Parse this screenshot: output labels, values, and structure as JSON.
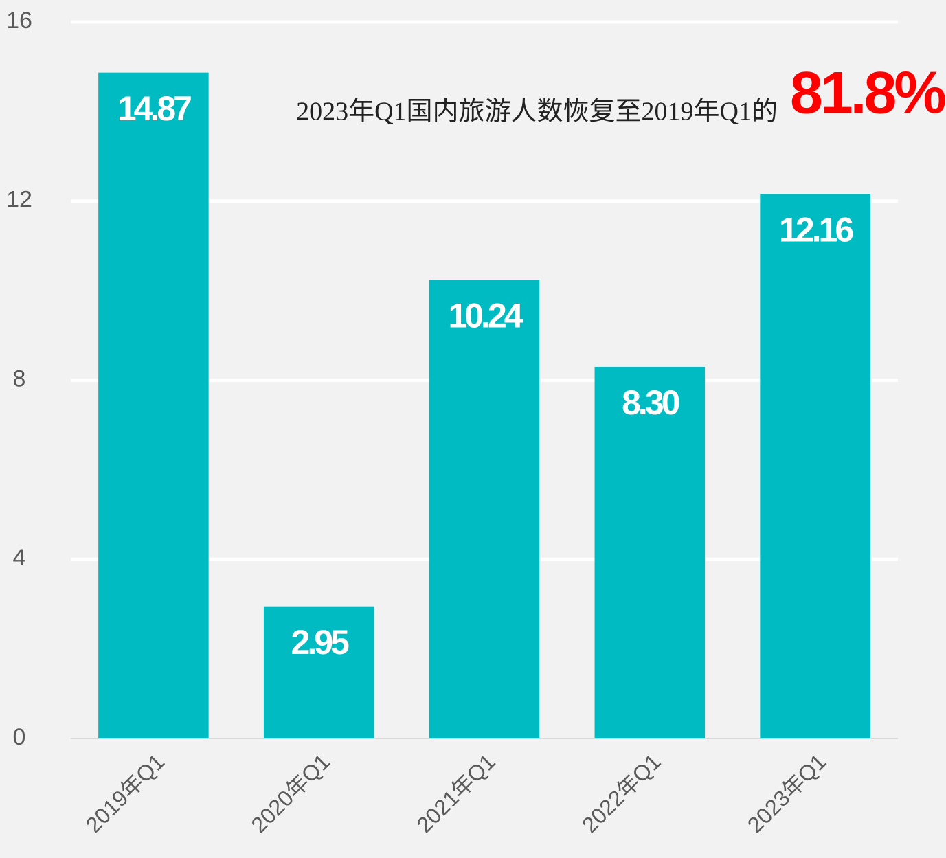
{
  "chart_data": {
    "type": "bar",
    "annotation": "2023年Q1国内旅游人数恢复至2019年Q1的",
    "annotation_highlight": "81.8%",
    "categories": [
      "2019年Q1",
      "2020年Q1",
      "2021年Q1",
      "2022年Q1",
      "2023年Q1"
    ],
    "values": [
      14.87,
      2.95,
      10.24,
      8.3,
      12.16
    ],
    "value_labels": [
      "14.87",
      "2.95",
      "10.24",
      "8.30",
      "12.16"
    ],
    "color": "#00bcc2",
    "ylim": [
      0,
      16
    ],
    "yticks": [
      0,
      4,
      8,
      12,
      16
    ],
    "grid": true
  }
}
